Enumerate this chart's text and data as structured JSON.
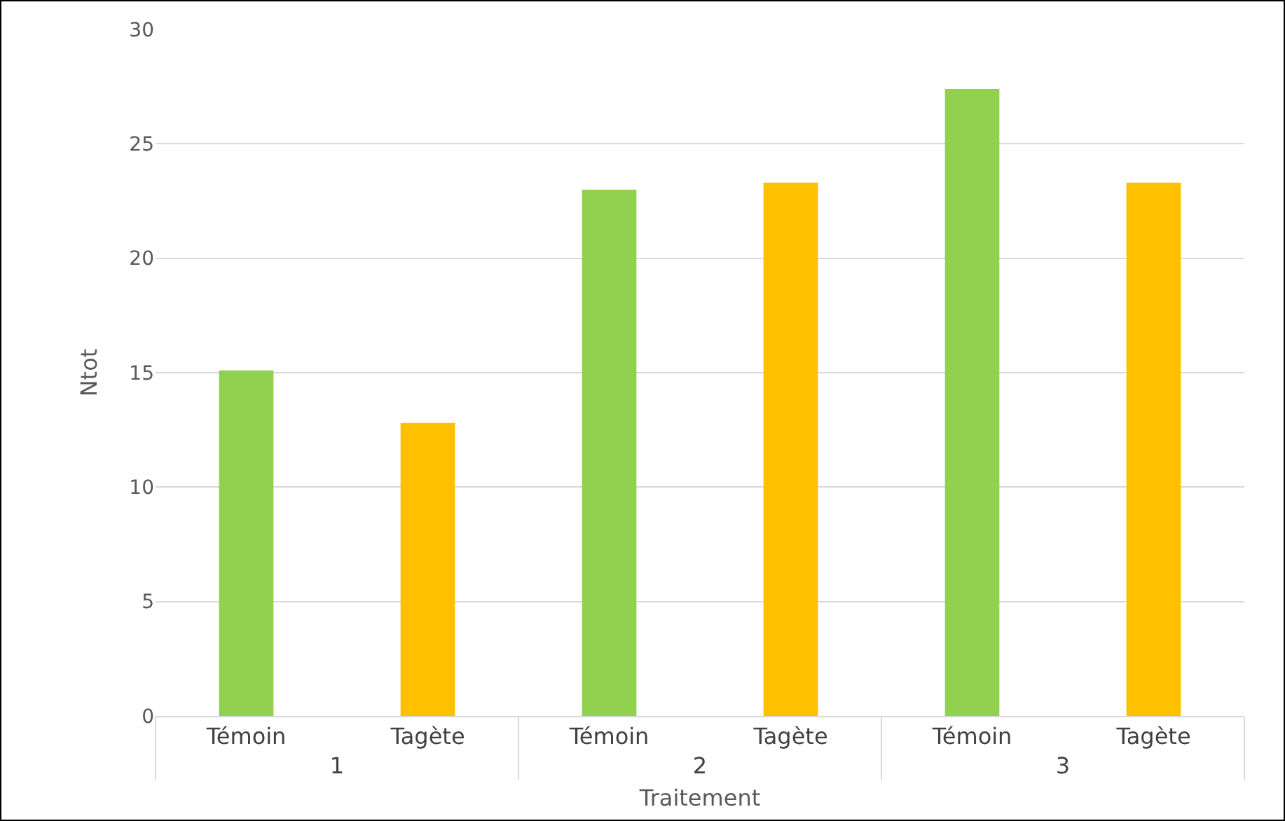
{
  "chart_data": {
    "type": "bar",
    "xlabel": "Traitement",
    "ylabel": "Ntot",
    "categories": [
      "Témoin",
      "Tagète",
      "Témoin",
      "Tagète",
      "Témoin",
      "Tagète"
    ],
    "values": [
      15.1,
      12.8,
      23.0,
      23.3,
      27.4,
      23.3
    ],
    "colors": [
      "#92d050",
      "#ffc000",
      "#92d050",
      "#ffc000",
      "#92d050",
      "#ffc000"
    ],
    "annotations": [
      "1",
      "2",
      "3"
    ],
    "ylim": [
      0,
      30
    ],
    "yticks": [
      0,
      5,
      10,
      15,
      20,
      25,
      30
    ],
    "grid": "y"
  }
}
